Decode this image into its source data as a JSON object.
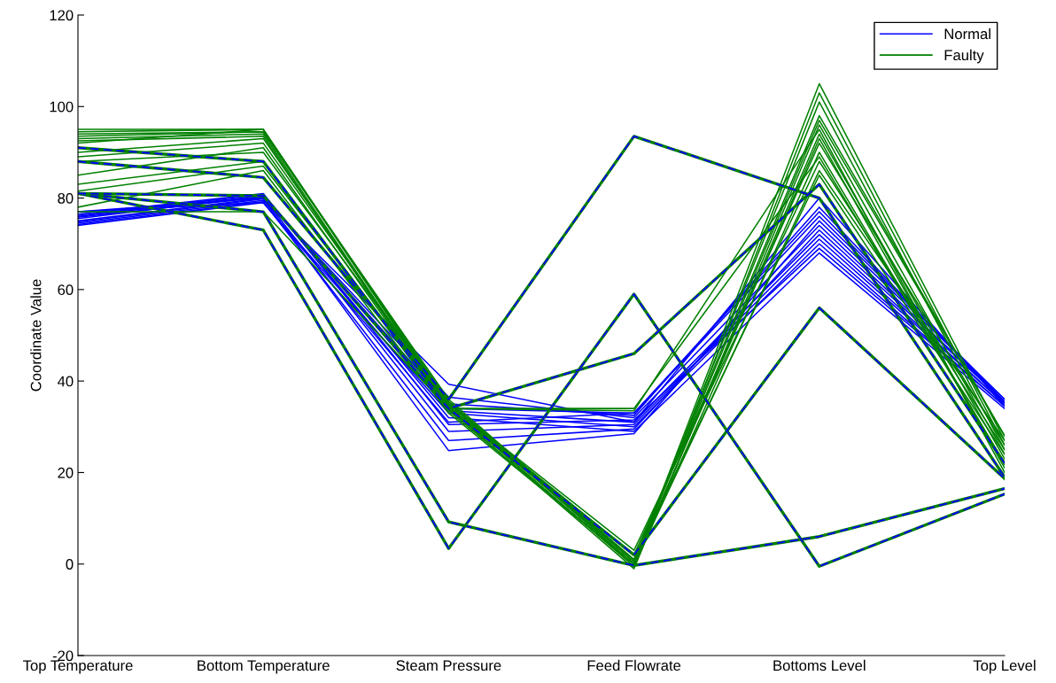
{
  "chart_data": {
    "type": "line",
    "ylabel": "Coordinate Value",
    "categories": [
      "Top Temperature",
      "Bottom Temperature",
      "Steam Pressure",
      "Feed Flowrate",
      "Bottoms Level",
      "Top Level"
    ],
    "ylim": [
      -20,
      120
    ],
    "yticks": [
      -20,
      0,
      20,
      40,
      60,
      80,
      100,
      120
    ],
    "grid": false,
    "legend": "top right",
    "line_style": "solid",
    "series": [
      {
        "name": "Normal",
        "color": "#0000ff",
        "values": [
          74,
          79,
          33,
          30,
          70,
          34.5
        ]
      },
      {
        "color": "#0000ff",
        "values": [
          74.5,
          79.5,
          39.3,
          31,
          72,
          35
        ]
      },
      {
        "color": "#0000ff",
        "values": [
          75,
          80,
          36.5,
          32,
          74,
          35.5
        ]
      },
      {
        "color": "#0000ff",
        "values": [
          75.5,
          80.5,
          34,
          33,
          76,
          36
        ]
      },
      {
        "color": "#0000ff",
        "values": [
          76,
          80.5,
          32,
          29,
          68,
          34
        ]
      },
      {
        "color": "#0000ff",
        "values": [
          76.5,
          81,
          30.5,
          31.5,
          69,
          34.5
        ]
      },
      {
        "color": "#0000ff",
        "values": [
          77,
          80,
          29,
          30.5,
          71,
          35
        ]
      },
      {
        "color": "#0000ff",
        "values": [
          74.2,
          79.2,
          27,
          29.5,
          73,
          35.5
        ]
      },
      {
        "color": "#0000ff",
        "values": [
          74.8,
          79.8,
          24.8,
          28.5,
          75,
          36
        ]
      },
      {
        "color": "#0000ff",
        "values": [
          75.8,
          80.2,
          35,
          32.5,
          78,
          35
        ]
      },
      {
        "color": "#0000ff",
        "values": [
          76.2,
          80.8,
          33.5,
          31,
          80,
          34.5
        ]
      },
      {
        "color": "#0000ff",
        "values": [
          77,
          79,
          31,
          33,
          77,
          35.5
        ]
      },
      {
        "name": "Faulty",
        "color": "#008000",
        "values": [
          95,
          95,
          35,
          0,
          105,
          27
        ]
      },
      {
        "color": "#008000",
        "values": [
          94.5,
          95,
          34.5,
          -0.5,
          103,
          26
        ]
      },
      {
        "color": "#008000",
        "values": [
          94,
          94.5,
          36,
          0.5,
          101,
          25
        ]
      },
      {
        "color": "#008000",
        "values": [
          93.5,
          94.5,
          35.5,
          1,
          98,
          28
        ]
      },
      {
        "color": "#008000",
        "values": [
          93,
          94,
          34,
          -1,
          96,
          24
        ]
      },
      {
        "color": "#008000",
        "values": [
          92.5,
          93.5,
          33.5,
          0,
          94,
          23
        ]
      },
      {
        "color": "#008000",
        "values": [
          92,
          95,
          35,
          2,
          92,
          26
        ]
      },
      {
        "color": "#008000",
        "values": [
          90,
          93,
          34.5,
          -0.5,
          90,
          22
        ]
      },
      {
        "color": "#008000",
        "values": [
          89,
          92,
          35,
          3,
          88,
          25
        ]
      },
      {
        "color": "#008000",
        "values": [
          88,
          90,
          35.5,
          0,
          86,
          27
        ]
      },
      {
        "color": "#008000",
        "values": [
          85,
          91,
          34,
          33.5,
          95,
          20
        ]
      },
      {
        "color": "#008000",
        "values": [
          83,
          88,
          34.5,
          1,
          85,
          24
        ]
      },
      {
        "color": "#008000",
        "values": [
          81.5,
          87,
          35,
          0.5,
          97,
          28
        ]
      },
      {
        "color": "#008000",
        "values": [
          78,
          86,
          33,
          0,
          93,
          21
        ]
      },
      {
        "color": "#008000",
        "values": [
          77,
          77,
          34,
          34,
          89,
          22
        ]
      },
      {
        "color": "#008000",
        "values": [
          81,
          77,
          9.2,
          -0.3,
          6,
          16.5
        ]
      },
      {
        "color": "#0000ff",
        "line_style": "dashed",
        "values": [
          81,
          77,
          9.2,
          -0.3,
          6,
          16.5
        ]
      },
      {
        "color": "#008000",
        "values": [
          81,
          73,
          3.4,
          59,
          -0.5,
          15.3
        ]
      },
      {
        "color": "#0000ff",
        "line_style": "dashed",
        "values": [
          81,
          73,
          3.4,
          59,
          -0.5,
          15.3
        ]
      },
      {
        "color": "#008000",
        "values": [
          88,
          84.5,
          36,
          93.5,
          80,
          19
        ]
      },
      {
        "color": "#0000ff",
        "line_style": "dashed",
        "values": [
          88,
          84.5,
          36,
          93.5,
          80,
          19
        ]
      },
      {
        "color": "#008000",
        "values": [
          91,
          88,
          34,
          46,
          83,
          22
        ]
      },
      {
        "color": "#0000ff",
        "line_style": "dashed",
        "values": [
          91,
          88,
          34,
          46,
          83,
          22
        ]
      },
      {
        "color": "#008000",
        "values": [
          81,
          80.5,
          34,
          2,
          56,
          18.7
        ]
      },
      {
        "color": "#0000ff",
        "line_style": "dashed",
        "values": [
          81,
          80.5,
          34,
          2,
          56,
          18.7
        ]
      }
    ]
  }
}
